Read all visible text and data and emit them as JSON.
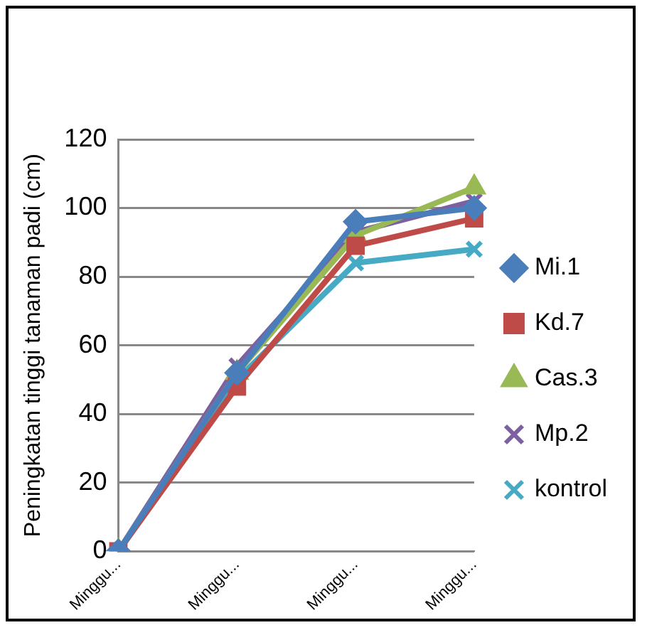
{
  "chart_data": {
    "type": "line",
    "ylabel": "Peningkatan tinggi tanaman padi (cm)",
    "categories": [
      "Minggu...",
      "Minggu...",
      "Minggu...",
      "Minggu..."
    ],
    "series": [
      {
        "name": "Mi.1",
        "color": "#4a7ebb",
        "marker": "diamond",
        "values": [
          0,
          52,
          96,
          100
        ]
      },
      {
        "name": "Kd.7",
        "color": "#be4b48",
        "marker": "square",
        "values": [
          0,
          48,
          89,
          97
        ]
      },
      {
        "name": "Cas.3",
        "color": "#98b954",
        "marker": "triangle",
        "values": [
          0,
          52,
          92,
          106
        ]
      },
      {
        "name": "Mp.2",
        "color": "#7d60a0",
        "marker": "cross",
        "values": [
          0,
          54,
          93,
          102
        ]
      },
      {
        "name": "kontrol",
        "color": "#46aac5",
        "marker": "cross",
        "values": [
          0,
          50,
          84,
          88
        ]
      }
    ],
    "ylim": [
      0,
      120
    ],
    "yticks": [
      0,
      20,
      40,
      60,
      80,
      100,
      120
    ],
    "grid": "y",
    "legend": "right",
    "line_style": "solid"
  }
}
